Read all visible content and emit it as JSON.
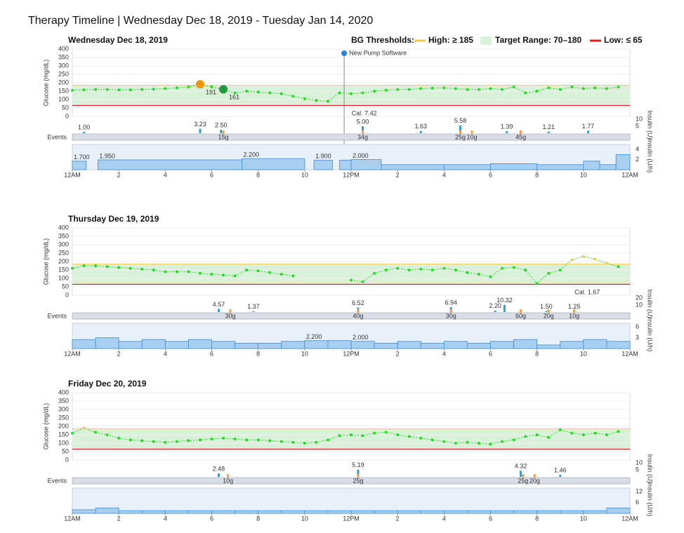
{
  "title": "Therapy Timeline | Wednesday Dec 18, 2019 - Tuesday Jan 14, 2020",
  "legend": {
    "label": "BG Thresholds:",
    "high": {
      "label": "High: ≥ 185",
      "value": 185,
      "color": "#f5c94f"
    },
    "target": {
      "label": "Target Range: 70–180",
      "values": [
        70,
        180
      ],
      "color": "#d8f1d8"
    },
    "low": {
      "label": "Low: ≤ 65",
      "value": 65,
      "color": "#e02020"
    }
  },
  "chart_data": [
    {
      "type": "line",
      "title": "Wednesday Dec 18, 2019",
      "ylabel": "Glucose (mg/dL)",
      "xlim": [
        0,
        24
      ],
      "xticks": [
        {
          "value": 0,
          "label": "12AM"
        },
        2,
        4,
        6,
        8,
        10,
        {
          "value": 12,
          "label": "12PM"
        },
        {
          "value": 14,
          "label": "2"
        },
        {
          "value": 16,
          "label": "4"
        },
        {
          "value": 18,
          "label": "6"
        },
        {
          "value": 20,
          "label": "8"
        },
        {
          "value": 22,
          "label": "10"
        },
        {
          "value": 24,
          "label": "12AM"
        }
      ],
      "ylim": [
        0,
        400
      ],
      "yticks": [
        0,
        50,
        100,
        150,
        200,
        250,
        300,
        350,
        400
      ],
      "glucose": {
        "color": "#22dd22",
        "x": [
          0,
          0.5,
          1,
          1.5,
          2,
          2.5,
          3,
          3.5,
          4,
          4.5,
          5,
          5.5,
          6,
          6.5,
          7,
          7.5,
          8,
          8.5,
          9,
          9.5,
          10,
          10.5,
          11,
          11.5,
          12,
          12.5,
          13,
          13.5,
          14,
          14.5,
          15,
          15.5,
          16,
          16.5,
          17,
          17.5,
          18,
          18.5,
          19,
          19.5,
          20,
          20.5,
          21,
          21.5,
          22,
          22.5,
          23,
          23.5
        ],
        "values": [
          155,
          158,
          160,
          160,
          158,
          158,
          160,
          162,
          165,
          170,
          175,
          188,
          175,
          161,
          140,
          150,
          145,
          140,
          135,
          120,
          105,
          95,
          90,
          140,
          135,
          140,
          150,
          155,
          160,
          160,
          165,
          168,
          170,
          165,
          160,
          160,
          165,
          160,
          175,
          140,
          150,
          170,
          160,
          175,
          165,
          170,
          165,
          175
        ]
      },
      "markers": [
        {
          "x": 5.5,
          "value": 191,
          "label": "191",
          "color": "#f0960a"
        },
        {
          "x": 6.5,
          "value": 161,
          "label": "161",
          "color": "#1f9a3a"
        }
      ],
      "annotations": [
        {
          "x": 11.7,
          "text": "New Pump Software",
          "vline": true
        },
        {
          "x": 12.2,
          "text": "Cal. 7.42"
        }
      ],
      "bolus": {
        "ylabel": "Insulin (U)",
        "color": "#3b9cc8",
        "ylim": [
          0,
          12
        ],
        "yticks": [
          5,
          10
        ],
        "x": [
          0.5,
          5.5,
          6.4,
          12.5,
          15,
          16.7,
          18.7,
          20.5,
          22.2
        ],
        "values": [
          1,
          3.23,
          2.5,
          5,
          1.63,
          5.58,
          1.39,
          1.21,
          1.77
        ],
        "value_labels": [
          "1.00",
          "3.23",
          "2.50",
          "5.00",
          "1.63",
          "5.58",
          "1.39",
          "1.21",
          "1.77"
        ]
      },
      "events": {
        "label": "Events",
        "x": [
          6.5,
          12.5,
          16.7,
          17.2,
          19.3
        ],
        "values": [
          15,
          34,
          25,
          10,
          45
        ],
        "value_labels": [
          "15g",
          "34g",
          "25g",
          "10g",
          "45g"
        ]
      },
      "basal": {
        "ylabel": "Insulin (U/h)",
        "color": "#a8cef0",
        "ylim": [
          0,
          5
        ],
        "yticks": [
          2,
          4
        ],
        "x": [
          0,
          0.6,
          1.1,
          7.3,
          10,
          10.4,
          11.2,
          11.5,
          12,
          13.3,
          16,
          18,
          20,
          22,
          22.7,
          23.4
        ],
        "values": [
          1.7,
          0,
          1.95,
          2.2,
          0,
          1.9,
          0,
          1.9,
          2,
          1,
          1,
          1.2,
          1,
          1.7,
          1,
          3
        ],
        "value_labels": [
          "1.700",
          null,
          "1.950",
          "2.200",
          null,
          "1.900",
          null,
          null,
          "2.000",
          null,
          null,
          null,
          null,
          null,
          null,
          null
        ]
      }
    },
    {
      "type": "line",
      "title": "Thursday Dec 19, 2019",
      "ylabel": "Glucose (mg/dL)",
      "xlim": [
        0,
        24
      ],
      "xticks": [
        {
          "value": 0,
          "label": "12AM"
        },
        2,
        4,
        6,
        8,
        10,
        {
          "value": 12,
          "label": "12PM"
        },
        {
          "value": 14,
          "label": "2"
        },
        {
          "value": 16,
          "label": "4"
        },
        {
          "value": 18,
          "label": "6"
        },
        {
          "value": 20,
          "label": "8"
        },
        {
          "value": 22,
          "label": "10"
        },
        {
          "value": 24,
          "label": "12AM"
        }
      ],
      "ylim": [
        0,
        400
      ],
      "yticks": [
        0,
        50,
        100,
        150,
        200,
        250,
        300,
        350,
        400
      ],
      "glucose": {
        "color": "#22dd22",
        "x": [
          0,
          0.5,
          1,
          1.5,
          2,
          2.5,
          3,
          3.5,
          4,
          4.5,
          5,
          5.5,
          6,
          6.5,
          7,
          7.5,
          8,
          8.5,
          9,
          9.5,
          10,
          10.5,
          11,
          11.5,
          12,
          12.5,
          13,
          13.5,
          14,
          14.5,
          15,
          15.5,
          16,
          16.5,
          17,
          17.5,
          18,
          18.5,
          19,
          19.5,
          20,
          20.5,
          21,
          21.5,
          22,
          22.5,
          23,
          23.5
        ],
        "values": [
          160,
          175,
          175,
          170,
          165,
          160,
          155,
          150,
          140,
          140,
          140,
          130,
          125,
          120,
          115,
          150,
          145,
          135,
          125,
          115,
          null,
          null,
          null,
          null,
          90,
          80,
          130,
          150,
          160,
          150,
          155,
          150,
          160,
          150,
          135,
          125,
          110,
          160,
          165,
          150,
          70,
          130,
          150,
          210,
          230,
          215,
          190,
          170
        ]
      },
      "annotations": [
        {
          "x": 21.8,
          "text": "Cal. 1.67"
        }
      ],
      "bolus": {
        "ylabel": "Insulin (U)",
        "color": "#3b9cc8",
        "ylim": [
          0,
          24
        ],
        "yticks": [
          10,
          20
        ],
        "x": [
          6.3,
          7.8,
          12.3,
          16.3,
          18.2,
          18.6,
          20.4,
          21.6
        ],
        "values": [
          4.57,
          1.37,
          6.52,
          6.94,
          2.2,
          10.32,
          1.5,
          1.25
        ],
        "value_labels": [
          "4.57",
          "1.37",
          "6.52",
          "6.94",
          "2.20",
          "10.32",
          "1.50",
          "1.25"
        ]
      },
      "events": {
        "label": "Events",
        "x": [
          6.8,
          12.3,
          16.3,
          19.3,
          20.5,
          21.6
        ],
        "values": [
          30,
          40,
          30,
          60,
          20,
          10
        ],
        "value_labels": [
          "30g",
          "40g",
          "30g",
          "60g",
          "20g",
          "10g"
        ]
      },
      "basal": {
        "ylabel": "Insulin (U/h)",
        "color": "#a8cef0",
        "ylim": [
          0,
          7
        ],
        "yticks": [
          3,
          6
        ],
        "x": [
          0,
          1,
          2,
          3,
          4,
          5,
          6,
          7,
          8,
          9,
          10,
          11,
          12,
          13,
          14,
          15,
          16,
          17,
          18,
          19,
          20,
          21,
          22,
          23
        ],
        "values": [
          2.5,
          3,
          2,
          2.5,
          2,
          2.5,
          2,
          1.5,
          1.5,
          2,
          2.2,
          2.2,
          2,
          1.5,
          2,
          1.5,
          2,
          1.5,
          2,
          2.5,
          1,
          2,
          2.5,
          2
        ],
        "value_labels": [
          null,
          null,
          null,
          null,
          null,
          null,
          null,
          null,
          null,
          null,
          "2.200",
          null,
          "2.000",
          null,
          null,
          null,
          null,
          null,
          null,
          null,
          null,
          null,
          null,
          null
        ]
      }
    },
    {
      "type": "line",
      "title": "Friday Dec 20, 2019",
      "ylabel": "Glucose (mg/dL)",
      "xlim": [
        0,
        24
      ],
      "xticks": [
        {
          "value": 0,
          "label": "12AM"
        },
        2,
        4,
        6,
        8,
        10,
        {
          "value": 12,
          "label": "12PM"
        },
        {
          "value": 14,
          "label": "2"
        },
        {
          "value": 16,
          "label": "4"
        },
        {
          "value": 18,
          "label": "6"
        },
        {
          "value": 20,
          "label": "8"
        },
        {
          "value": 22,
          "label": "10"
        },
        {
          "value": 24,
          "label": "12AM"
        }
      ],
      "ylim": [
        0,
        400
      ],
      "yticks": [
        0,
        50,
        100,
        150,
        200,
        250,
        300,
        350,
        400
      ],
      "glucose": {
        "color": "#22dd22",
        "x": [
          0,
          0.5,
          1,
          1.5,
          2,
          2.5,
          3,
          3.5,
          4,
          4.5,
          5,
          5.5,
          6,
          6.5,
          7,
          7.5,
          8,
          8.5,
          9,
          9.5,
          10,
          10.5,
          11,
          11.5,
          12,
          12.5,
          13,
          13.5,
          14,
          14.5,
          15,
          15.5,
          16,
          16.5,
          17,
          17.5,
          18,
          18.5,
          19,
          19.5,
          20,
          20.5,
          21,
          21.5,
          22,
          22.5,
          23,
          23.5
        ],
        "values": [
          160,
          190,
          165,
          150,
          130,
          120,
          115,
          110,
          105,
          110,
          115,
          120,
          125,
          130,
          125,
          120,
          120,
          115,
          110,
          105,
          100,
          105,
          120,
          145,
          150,
          145,
          160,
          165,
          150,
          140,
          130,
          120,
          110,
          100,
          105,
          100,
          95,
          110,
          120,
          140,
          150,
          135,
          180,
          160,
          150,
          160,
          150,
          170
        ]
      },
      "bolus": {
        "ylabel": "Insulin (U)",
        "color": "#3b9cc8",
        "ylim": [
          0,
          12
        ],
        "yticks": [
          5,
          10
        ],
        "x": [
          6.3,
          12.3,
          19.3,
          21
        ],
        "values": [
          2.48,
          5.19,
          4.32,
          1.46
        ],
        "value_labels": [
          "2.48",
          "5.19",
          "4.32",
          "1.46"
        ]
      },
      "events": {
        "label": "Events",
        "x": [
          6.7,
          12.3,
          19.4,
          19.9
        ],
        "values": [
          10,
          25,
          25,
          20
        ],
        "value_labels": [
          "10g",
          "25g",
          "25g",
          "20g"
        ]
      },
      "basal": {
        "ylabel": "Insulin (U/h)",
        "color": "#a8cef0",
        "ylim": [
          0,
          14
        ],
        "yticks": [
          6,
          12
        ],
        "x": [
          0,
          1,
          2,
          3,
          4,
          5,
          6,
          7,
          8,
          9,
          10,
          11,
          12,
          13,
          14,
          15,
          16,
          17,
          18,
          19,
          20,
          21,
          22,
          23
        ],
        "values": [
          2,
          3,
          1.5,
          1.5,
          1.5,
          1.5,
          1.5,
          1.5,
          1.5,
          1.5,
          1.5,
          1.5,
          1.5,
          1.5,
          1.5,
          1.5,
          1.5,
          1.5,
          1.5,
          1.5,
          1.5,
          1.5,
          1.5,
          3
        ]
      }
    }
  ]
}
